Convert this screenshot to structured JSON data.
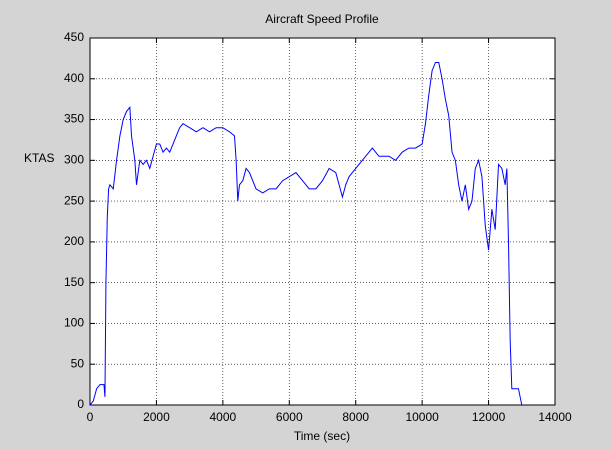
{
  "chart_data": {
    "type": "line",
    "title": "Aircraft Speed Profile",
    "x_label": "Time (sec)",
    "y_label": "KTAS",
    "x": [
      0,
      100,
      200,
      300,
      420,
      450,
      480,
      520,
      560,
      600,
      700,
      800,
      900,
      1000,
      1100,
      1200,
      1250,
      1350,
      1400,
      1500,
      1600,
      1700,
      1800,
      1900,
      2000,
      2100,
      2200,
      2300,
      2400,
      2500,
      2600,
      2700,
      2800,
      3000,
      3200,
      3400,
      3600,
      3800,
      4000,
      4200,
      4350,
      4400,
      4450,
      4500,
      4600,
      4700,
      4800,
      5000,
      5200,
      5400,
      5600,
      5800,
      6000,
      6200,
      6400,
      6600,
      6800,
      7000,
      7200,
      7400,
      7500,
      7600,
      7700,
      7800,
      8000,
      8200,
      8400,
      8500,
      8700,
      9000,
      9200,
      9400,
      9600,
      9800,
      10000,
      10100,
      10200,
      10300,
      10400,
      10500,
      10600,
      10700,
      10800,
      10900,
      11000,
      11100,
      11200,
      11300,
      11400,
      11500,
      11600,
      11700,
      11800,
      11900,
      12000,
      12100,
      12200,
      12300,
      12400,
      12500,
      12550,
      12600,
      12650,
      12700,
      12800,
      12900,
      13000
    ],
    "series": [
      {
        "name": "KTAS",
        "color": "#0000ff",
        "values": [
          0,
          5,
          20,
          25,
          25,
          10,
          150,
          230,
          265,
          270,
          265,
          300,
          330,
          350,
          360,
          365,
          330,
          300,
          270,
          300,
          295,
          300,
          290,
          305,
          320,
          320,
          310,
          315,
          310,
          320,
          330,
          340,
          345,
          340,
          335,
          340,
          335,
          340,
          340,
          335,
          330,
          300,
          250,
          270,
          275,
          290,
          285,
          265,
          260,
          265,
          265,
          275,
          280,
          285,
          275,
          265,
          265,
          275,
          290,
          285,
          270,
          255,
          270,
          280,
          290,
          300,
          310,
          315,
          305,
          305,
          300,
          310,
          315,
          315,
          320,
          345,
          380,
          410,
          420,
          420,
          400,
          375,
          355,
          310,
          300,
          270,
          250,
          270,
          240,
          250,
          290,
          300,
          280,
          220,
          190,
          240,
          215,
          295,
          290,
          270,
          290,
          200,
          80,
          20,
          20,
          20,
          0
        ]
      }
    ],
    "xlim": [
      0,
      14000
    ],
    "xticks": [
      0,
      2000,
      4000,
      6000,
      8000,
      10000,
      12000,
      14000
    ],
    "ylim": [
      0,
      450
    ],
    "yticks": [
      0,
      50,
      100,
      150,
      200,
      250,
      300,
      350,
      400,
      450
    ],
    "grid": true
  }
}
